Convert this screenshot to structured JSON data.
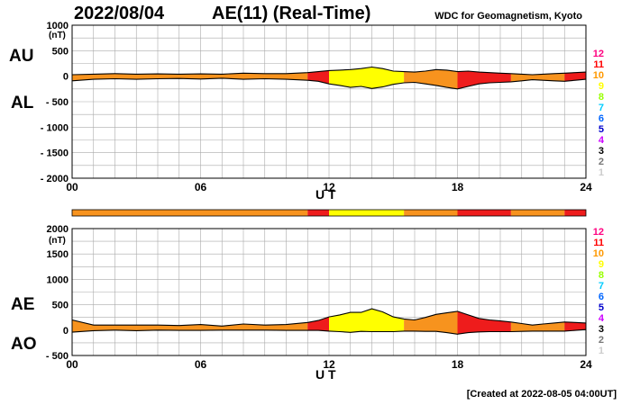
{
  "header": {
    "date": "2022/08/04",
    "title": "AE(11) (Real-Time)",
    "credit": "WDC for Geomagnetism, Kyoto",
    "created": "[Created at 2022-08-05 04:00UT]"
  },
  "labels": {
    "au": "AU",
    "al": "AL",
    "ae": "AE",
    "ao": "AO",
    "nt": "(nT)",
    "ut": "U T"
  },
  "scale_bar": [
    {
      "v": "12",
      "color": "#ff0080"
    },
    {
      "v": "11",
      "color": "#ff0000"
    },
    {
      "v": "10",
      "color": "#ff9900"
    },
    {
      "v": "9",
      "color": "#ffff00"
    },
    {
      "v": "8",
      "color": "#99ff00"
    },
    {
      "v": "7",
      "color": "#00ccff"
    },
    {
      "v": "6",
      "color": "#0066ff"
    },
    {
      "v": "5",
      "color": "#0000cc"
    },
    {
      "v": "4",
      "color": "#cc00ff"
    },
    {
      "v": "3",
      "color": "#000000"
    },
    {
      "v": "2",
      "color": "#777777"
    },
    {
      "v": "1",
      "color": "#cccccc"
    }
  ],
  "colors": {
    "c10": "#f7931e",
    "c11": "#ee1c1c",
    "c9": "#ffff00",
    "grid": "#aaaaaa"
  },
  "chart_data": [
    {
      "type": "area",
      "title": "AU / AL",
      "xlabel": "U T",
      "xticks": [
        "00",
        "06",
        "12",
        "18",
        "24"
      ],
      "xlim": [
        0,
        24
      ],
      "ylim": [
        -2000,
        1000
      ],
      "yticks": [
        1000,
        500,
        0,
        -500,
        -1000,
        -1500,
        -2000
      ],
      "ytick_labels": [
        "1000",
        "500",
        "0",
        "- 500",
        "- 1000",
        "- 1500",
        "- 2000"
      ],
      "x": [
        0,
        1,
        2,
        3,
        4,
        5,
        6,
        7,
        8,
        9,
        10,
        11,
        11.5,
        12,
        12.5,
        13,
        13.5,
        14,
        14.5,
        15,
        15.5,
        16,
        16.5,
        17,
        17.5,
        18,
        18.5,
        19,
        19.5,
        20,
        20.5,
        21,
        21.5,
        22,
        22.5,
        23,
        23.5,
        24
      ],
      "series": [
        {
          "name": "AU",
          "values": [
            30,
            40,
            50,
            40,
            45,
            40,
            45,
            40,
            60,
            50,
            50,
            70,
            90,
            110,
            120,
            130,
            150,
            180,
            150,
            100,
            90,
            80,
            100,
            130,
            120,
            90,
            100,
            80,
            70,
            60,
            50,
            40,
            30,
            40,
            50,
            60,
            70,
            80
          ]
        },
        {
          "name": "AL",
          "values": [
            -90,
            -60,
            -50,
            -60,
            -50,
            -45,
            -55,
            -40,
            -60,
            -50,
            -60,
            -80,
            -100,
            -150,
            -180,
            -220,
            -200,
            -240,
            -210,
            -160,
            -130,
            -120,
            -150,
            -180,
            -220,
            -250,
            -200,
            -150,
            -130,
            -120,
            -110,
            -90,
            -70,
            -80,
            -90,
            -100,
            -80,
            -60
          ]
        }
      ],
      "color_bands": [
        {
          "from": 0,
          "to": 11,
          "level": 10
        },
        {
          "from": 11,
          "to": 12,
          "level": 11
        },
        {
          "from": 12,
          "to": 15.5,
          "level": 9
        },
        {
          "from": 15.5,
          "to": 18,
          "level": 10
        },
        {
          "from": 18,
          "to": 20.5,
          "level": 11
        },
        {
          "from": 20.5,
          "to": 23,
          "level": 10
        },
        {
          "from": 23,
          "to": 24,
          "level": 11
        }
      ]
    },
    {
      "type": "area",
      "title": "AE / AO",
      "xlabel": "U T",
      "xticks": [
        "00",
        "06",
        "12",
        "18",
        "24"
      ],
      "xlim": [
        0,
        24
      ],
      "ylim": [
        -500,
        2000
      ],
      "yticks": [
        2000,
        1500,
        1000,
        500,
        0,
        -500
      ],
      "ytick_labels": [
        "2000",
        "1500",
        "1000",
        "500",
        "0",
        "- 500"
      ],
      "x": [
        0,
        1,
        2,
        3,
        4,
        5,
        6,
        7,
        8,
        9,
        10,
        11,
        11.5,
        12,
        12.5,
        13,
        13.5,
        14,
        14.5,
        15,
        15.5,
        16,
        16.5,
        17,
        17.5,
        18,
        18.5,
        19,
        19.5,
        20,
        20.5,
        21,
        21.5,
        22,
        22.5,
        23,
        23.5,
        24
      ],
      "series": [
        {
          "name": "AE",
          "values": [
            200,
            100,
            100,
            100,
            100,
            90,
            110,
            80,
            120,
            100,
            110,
            150,
            190,
            260,
            300,
            350,
            350,
            420,
            360,
            260,
            220,
            200,
            250,
            310,
            340,
            370,
            300,
            230,
            200,
            180,
            160,
            130,
            100,
            120,
            140,
            160,
            150,
            140
          ]
        },
        {
          "name": "AO",
          "values": [
            -40,
            -10,
            0,
            -10,
            0,
            -5,
            -5,
            0,
            0,
            0,
            -5,
            -5,
            -5,
            -20,
            -30,
            -45,
            -25,
            -30,
            -30,
            -30,
            -20,
            -20,
            -25,
            -25,
            -50,
            -80,
            -50,
            -35,
            -30,
            -30,
            -30,
            -25,
            -20,
            -20,
            -20,
            -20,
            -5,
            10
          ]
        }
      ],
      "color_bands": [
        {
          "from": 0,
          "to": 11,
          "level": 10
        },
        {
          "from": 11,
          "to": 12,
          "level": 11
        },
        {
          "from": 12,
          "to": 15.5,
          "level": 9
        },
        {
          "from": 15.5,
          "to": 18,
          "level": 10
        },
        {
          "from": 18,
          "to": 20.5,
          "level": 11
        },
        {
          "from": 20.5,
          "to": 23,
          "level": 10
        },
        {
          "from": 23,
          "to": 24,
          "level": 11
        }
      ]
    }
  ]
}
